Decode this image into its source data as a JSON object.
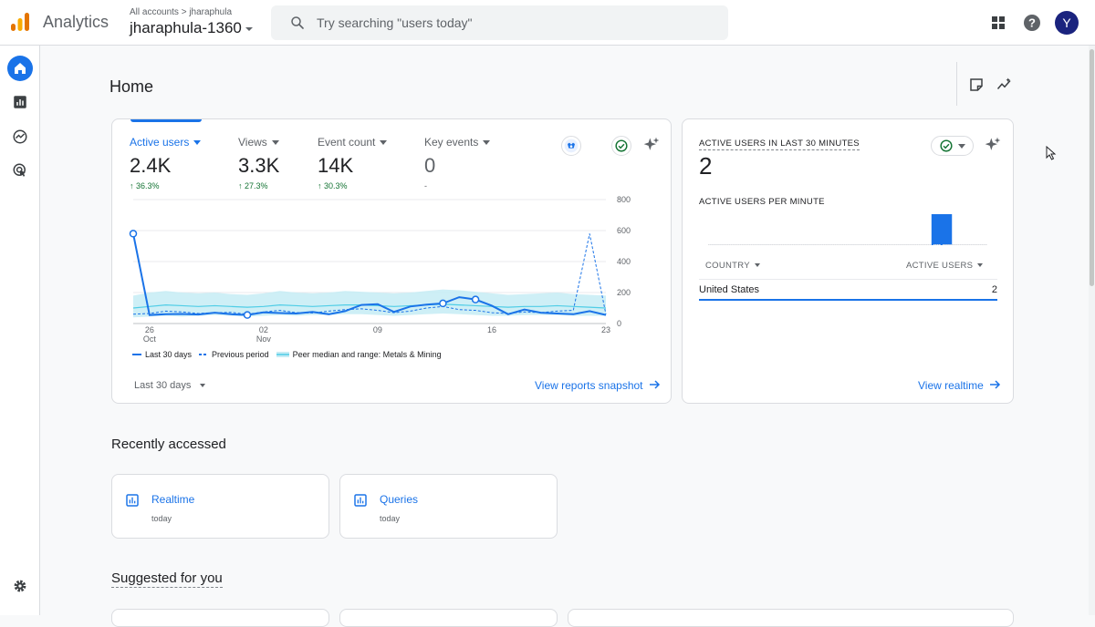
{
  "header": {
    "app_name": "Analytics",
    "breadcrumb": "All accounts > jharaphula",
    "account_name": "jharaphula-1360",
    "search_placeholder": "Try searching \"users today\"",
    "avatar_letter": "Y"
  },
  "page": {
    "title": "Home"
  },
  "overview": {
    "metrics": [
      {
        "label": "Active users",
        "value": "2.4K",
        "delta": "↑ 36.3%"
      },
      {
        "label": "Views",
        "value": "3.3K",
        "delta": "↑ 27.3%"
      },
      {
        "label": "Event count",
        "value": "14K",
        "delta": "↑ 30.3%"
      },
      {
        "label": "Key events",
        "value": "0",
        "delta": "-"
      }
    ],
    "legend": {
      "current": "Last 30 days",
      "previous": "Previous period",
      "peer": "Peer median and range: Metals & Mining"
    },
    "date_range": "Last 30 days",
    "view_link": "View reports snapshot"
  },
  "chart_data": {
    "type": "line",
    "x_tick_labels": [
      [
        "26",
        "Oct"
      ],
      [
        "02",
        "Nov"
      ],
      [
        "09",
        ""
      ],
      [
        "16",
        ""
      ],
      [
        "23",
        ""
      ]
    ],
    "x_tick_index": [
      1,
      8,
      15,
      22,
      29
    ],
    "y_tick_labels": [
      "800",
      "600",
      "400",
      "200",
      "0"
    ],
    "ylim": [
      0,
      800
    ],
    "series": [
      {
        "name": "Last 30 days",
        "values": [
          580,
          55,
          60,
          62,
          58,
          70,
          60,
          55,
          72,
          68,
          65,
          75,
          60,
          80,
          120,
          125,
          75,
          110,
          122,
          130,
          170,
          155,
          115,
          60,
          90,
          70,
          65,
          60,
          80,
          55
        ]
      },
      {
        "name": "Previous period",
        "values": [
          60,
          65,
          80,
          75,
          65,
          70,
          72,
          60,
          75,
          85,
          70,
          68,
          80,
          90,
          95,
          85,
          70,
          80,
          100,
          110,
          90,
          85,
          70,
          65,
          75,
          70,
          80,
          85,
          580,
          60
        ]
      }
    ],
    "peer_range": {
      "lower": [
        40,
        45,
        50,
        45,
        50,
        55,
        50,
        45,
        50,
        55,
        50,
        55,
        55,
        60,
        60,
        55,
        50,
        55,
        60,
        65,
        60,
        55,
        50,
        50,
        55,
        55,
        55,
        50,
        50,
        50
      ],
      "upper": [
        180,
        200,
        210,
        200,
        195,
        200,
        190,
        185,
        195,
        210,
        200,
        195,
        200,
        210,
        205,
        200,
        195,
        200,
        210,
        220,
        215,
        205,
        195,
        185,
        190,
        195,
        200,
        190,
        185,
        180
      ],
      "median": [
        100,
        110,
        120,
        115,
        110,
        115,
        110,
        105,
        110,
        120,
        115,
        110,
        115,
        120,
        120,
        115,
        110,
        115,
        120,
        125,
        120,
        115,
        110,
        105,
        110,
        110,
        115,
        110,
        105,
        100
      ]
    },
    "highlighted_points": [
      0,
      7,
      19,
      21
    ]
  },
  "realtime": {
    "title": "ACTIVE USERS IN LAST 30 MINUTES",
    "value": "2",
    "per_minute_label": "ACTIVE USERS PER MINUTE",
    "per_minute_values": [
      0,
      0,
      0,
      0,
      0,
      0,
      0,
      0,
      0,
      0,
      0,
      0,
      0,
      0,
      0,
      0,
      0,
      0,
      0,
      0,
      0,
      0,
      0,
      0,
      0,
      0,
      0,
      0,
      0,
      0,
      0,
      0,
      0,
      0,
      0,
      0,
      0,
      0,
      0,
      0,
      0,
      0,
      0,
      0,
      0,
      0,
      0,
      0,
      0,
      0,
      0,
      0,
      0,
      0,
      0,
      0,
      0,
      0,
      0,
      0,
      0,
      0,
      0,
      0,
      0,
      0,
      0,
      0,
      0,
      0,
      0,
      0,
      0,
      0,
      0,
      0,
      0,
      0,
      0,
      0,
      0,
      0,
      0,
      0,
      0,
      0,
      0,
      0,
      0,
      0,
      0,
      0,
      0,
      0,
      0,
      0,
      0,
      0,
      0,
      0,
      0,
      0,
      0,
      0,
      0,
      0,
      0,
      0,
      0,
      0,
      0,
      0,
      0,
      0,
      0,
      0,
      0,
      0,
      0,
      0,
      1,
      0,
      0,
      0,
      0,
      1,
      0,
      0,
      0,
      0,
      0,
      0,
      0,
      0,
      0,
      0,
      0,
      0,
      0,
      0,
      0,
      0,
      0,
      0,
      0,
      0,
      0,
      0,
      0,
      0
    ],
    "table": {
      "col_country": "COUNTRY",
      "col_users": "ACTIVE USERS",
      "rows": [
        {
          "country": "United States",
          "users": "2"
        }
      ]
    },
    "view_link": "View realtime"
  },
  "recently_accessed": {
    "title": "Recently accessed",
    "items": [
      {
        "label": "Realtime",
        "time": "today"
      },
      {
        "label": "Queries",
        "time": "today"
      }
    ]
  },
  "suggested": {
    "title": "Suggested for you"
  },
  "colors": {
    "accent": "#1a73e8",
    "positive": "#137333",
    "peer_fill": "#c6ecf4",
    "peer_line": "#4ecde6",
    "avatar": "#1a237e"
  }
}
